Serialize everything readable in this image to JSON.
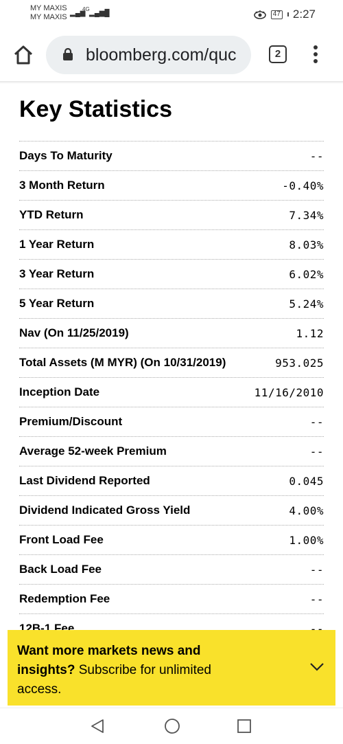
{
  "status_bar": {
    "carrier_1": "MY MAXIS",
    "carrier_2": "MY MAXIS",
    "network": "4G",
    "battery": "47",
    "time": "2:27"
  },
  "browser": {
    "url": "bloomberg.com/quc",
    "tab_count": "2"
  },
  "page": {
    "title": "Key Statistics",
    "stats": [
      {
        "label": "Days To Maturity",
        "value": "--"
      },
      {
        "label": "3 Month Return",
        "value": "-0.40%"
      },
      {
        "label": "YTD Return",
        "value": "7.34%"
      },
      {
        "label": "1 Year Return",
        "value": "8.03%"
      },
      {
        "label": "3 Year Return",
        "value": "6.02%"
      },
      {
        "label": "5 Year Return",
        "value": "5.24%"
      },
      {
        "label": "Nav (On 11/25/2019)",
        "value": "1.12"
      },
      {
        "label": "Total Assets (M MYR) (On 10/31/2019)",
        "value": "953.025"
      },
      {
        "label": "Inception Date",
        "value": "11/16/2010"
      },
      {
        "label": "Premium/Discount",
        "value": "--"
      },
      {
        "label": "Average 52-week Premium",
        "value": "--"
      },
      {
        "label": "Last Dividend Reported",
        "value": "0.045"
      },
      {
        "label": "Dividend Indicated Gross Yield",
        "value": "4.00%"
      },
      {
        "label": "Front Load Fee",
        "value": "1.00%"
      },
      {
        "label": "Back Load Fee",
        "value": "--"
      },
      {
        "label": "Redemption Fee",
        "value": "--"
      },
      {
        "label": "12B-1 Fee",
        "value": "--"
      }
    ]
  },
  "banner": {
    "bold_text": "Want more markets news and insights?",
    "text": " Subscribe for unlimited access.",
    "background": "#f9e12b"
  },
  "icons": [
    "home-icon",
    "lock-icon",
    "tabs-icon",
    "menu-icon",
    "chevron-down-icon",
    "back-icon",
    "home-circle-icon",
    "recents-icon",
    "eye-icon",
    "battery-icon"
  ]
}
